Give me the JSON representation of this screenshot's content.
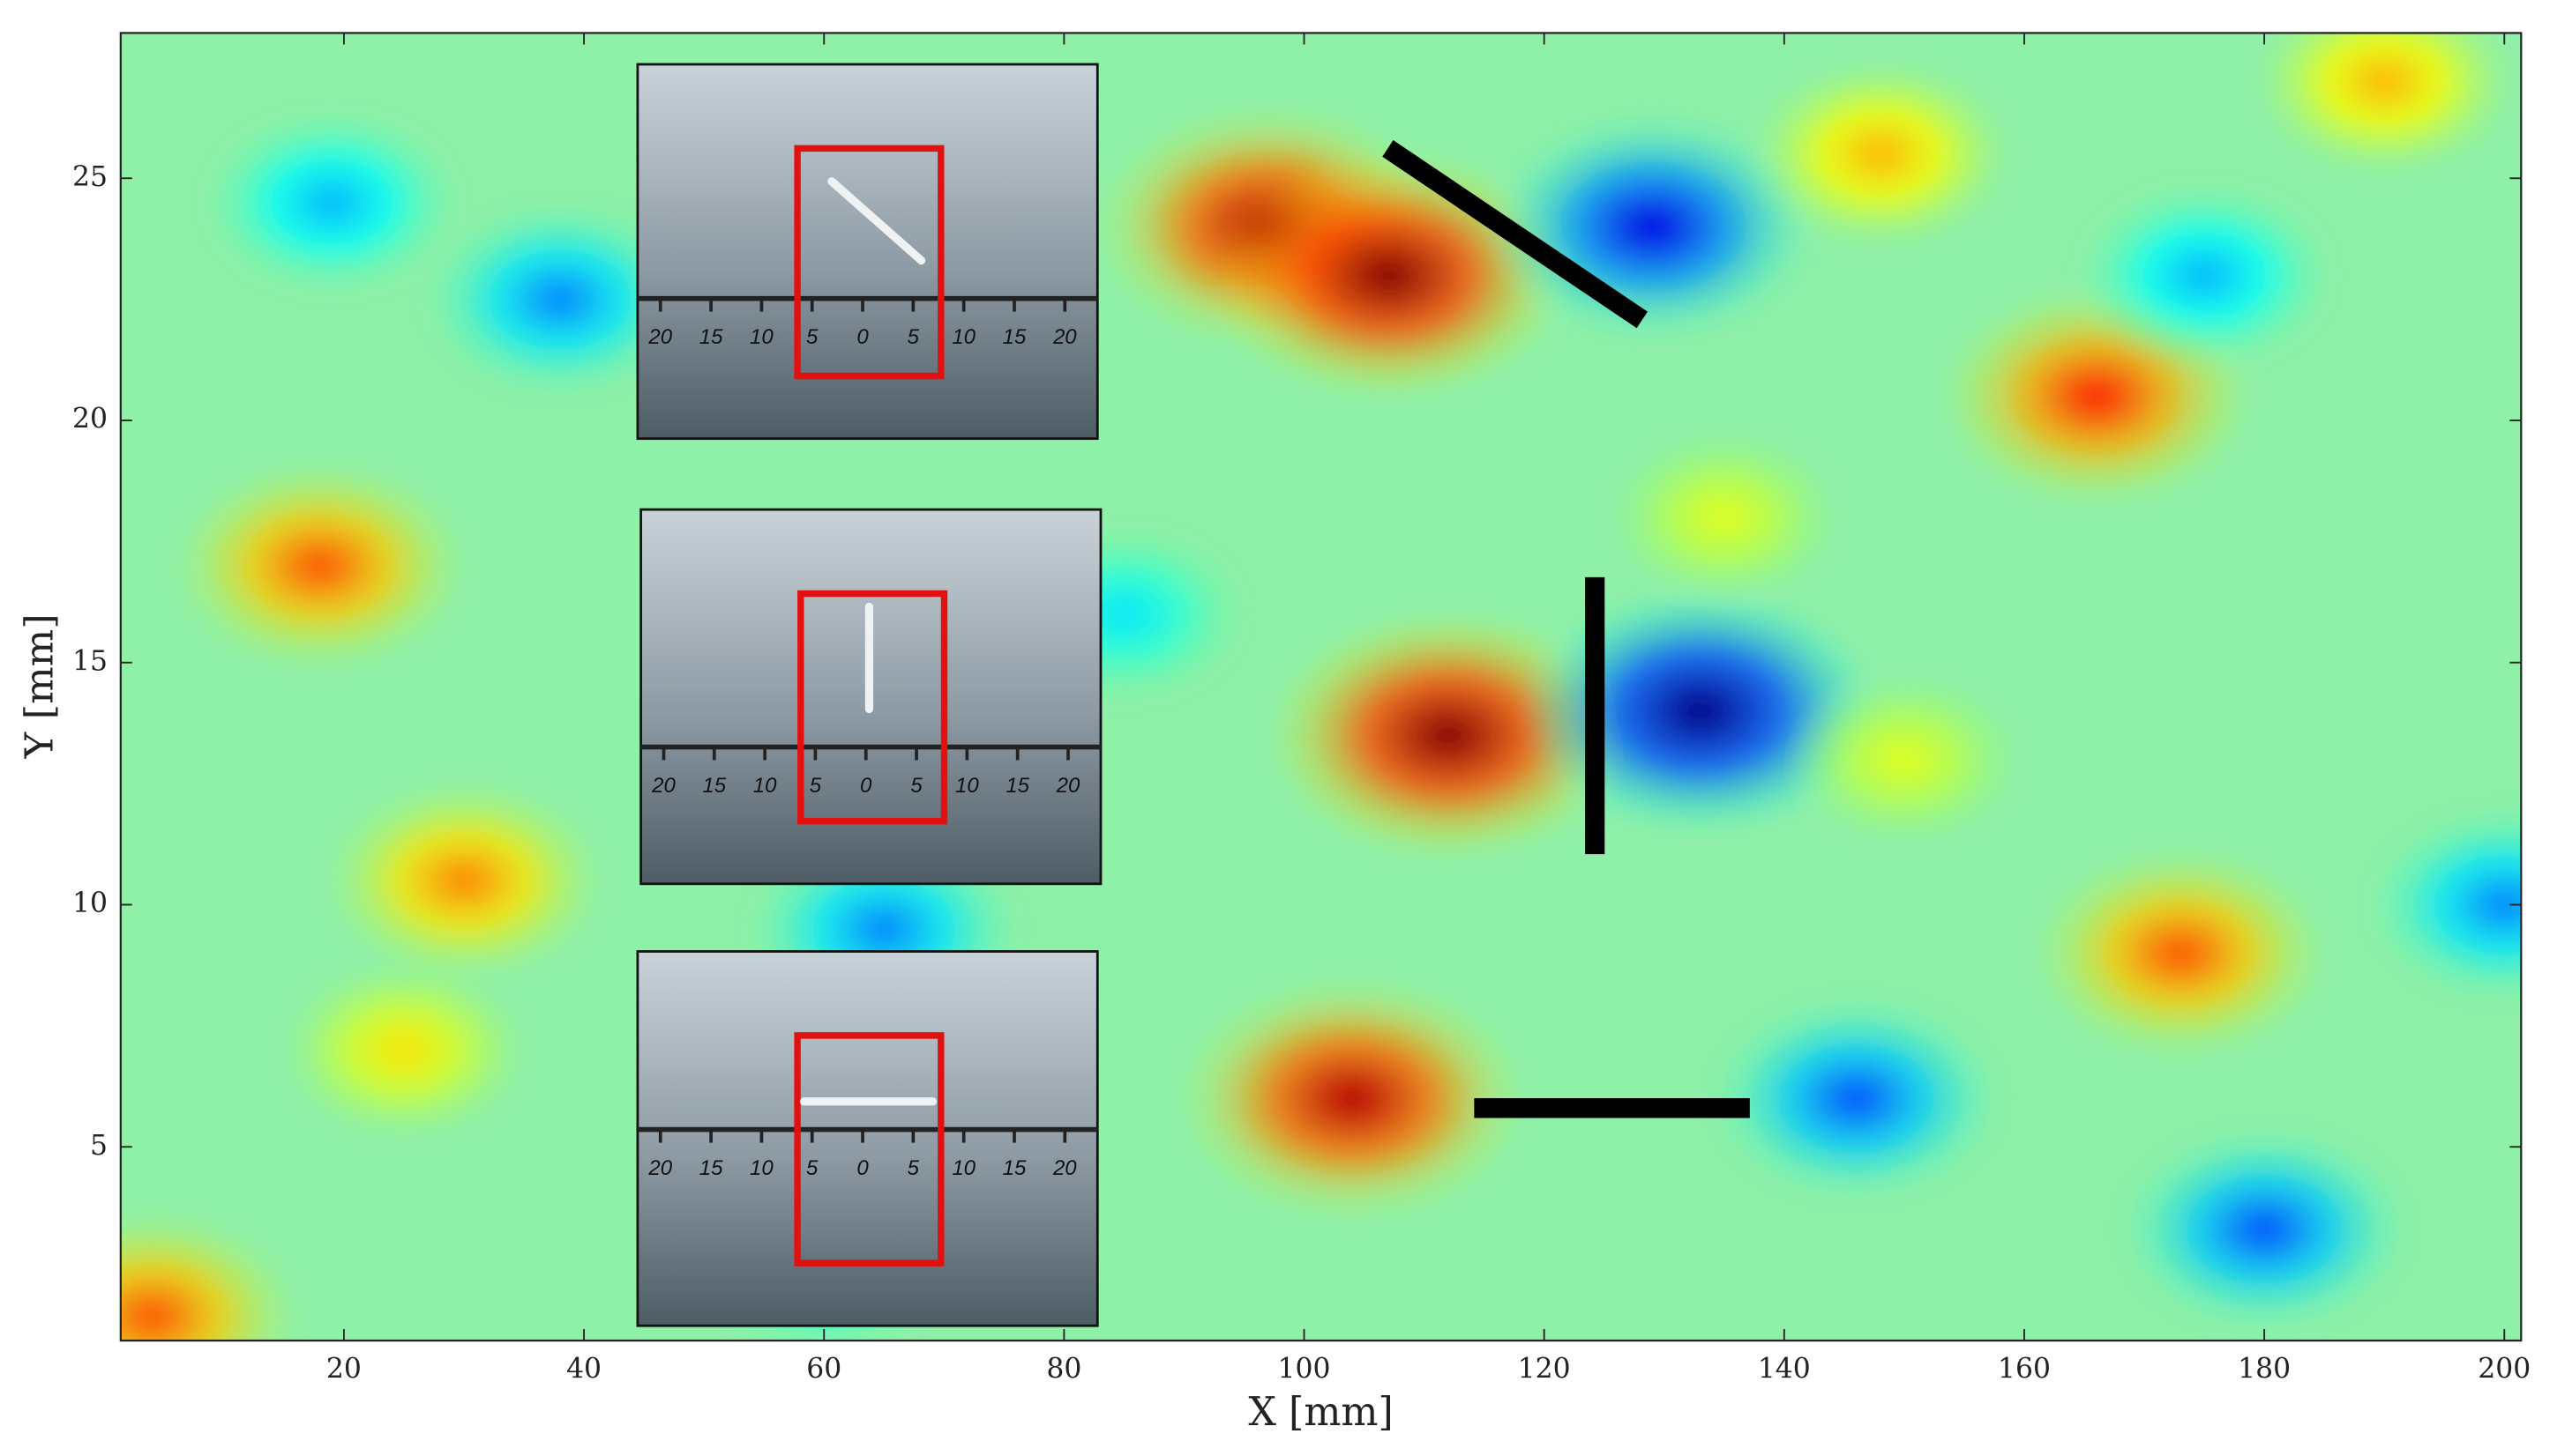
{
  "chart_data": {
    "type": "contour",
    "xlabel": "X [mm]",
    "ylabel": "Y [mm]",
    "xlim": [
      1.4,
      201.4
    ],
    "ylim": [
      1,
      28
    ],
    "xticks": [
      20,
      40,
      60,
      80,
      100,
      120,
      140,
      160,
      180,
      200
    ],
    "yticks": [
      5,
      10,
      15,
      20,
      25
    ],
    "x": [
      97,
      107,
      129,
      112,
      133,
      104,
      146,
      166,
      18,
      30,
      173,
      180,
      38,
      19,
      148,
      4,
      65,
      60,
      150,
      190,
      85,
      175,
      25,
      200,
      135
    ],
    "y": [
      24,
      23,
      24,
      13.5,
      14,
      6,
      6,
      20.5,
      17,
      10.5,
      9,
      3.3,
      22.5,
      24.5,
      25.5,
      1.5,
      9.5,
      2.5,
      13,
      27,
      16,
      23,
      7,
      10,
      18
    ],
    "values": [
      0.9,
      1,
      -0.8,
      1,
      -1,
      0.9,
      -0.6,
      0.7,
      0.6,
      0.5,
      0.6,
      -0.6,
      -0.5,
      -0.4,
      0.4,
      0.6,
      -0.5,
      -0.3,
      0.2,
      0.4,
      -0.3,
      -0.4,
      0.3,
      -0.5,
      0.2
    ],
    "ruler_labels": [
      "20",
      "15",
      "10",
      "5",
      "0",
      "5",
      "10",
      "15",
      "20"
    ]
  }
}
